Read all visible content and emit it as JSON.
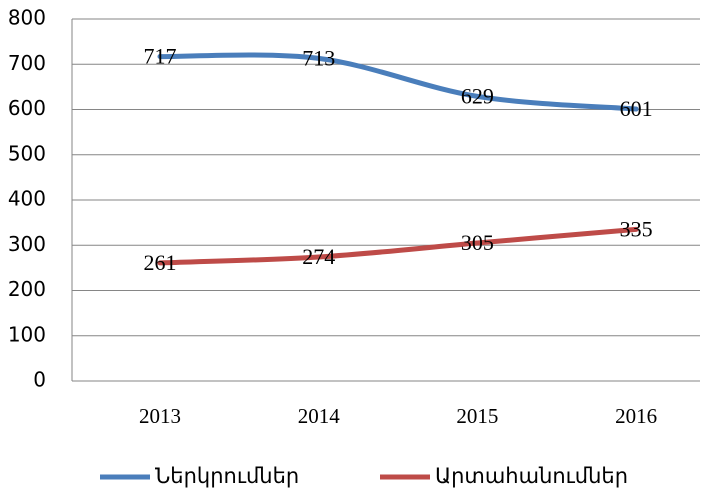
{
  "chart_data": {
    "type": "line",
    "categories": [
      "2013",
      "2014",
      "2015",
      "2016"
    ],
    "series": [
      {
        "name": "Ներկրումներ",
        "color": "#4a7ebb",
        "values": [
          717,
          713,
          629,
          601
        ]
      },
      {
        "name": "Արտահանումներ",
        "color": "#be4b48",
        "values": [
          261,
          274,
          305,
          335
        ]
      }
    ],
    "ylim": [
      0,
      800
    ],
    "yticks": [
      0,
      100,
      200,
      300,
      400,
      500,
      600,
      700,
      800
    ],
    "grid": true,
    "legend": "bottom",
    "data_labels": true
  }
}
